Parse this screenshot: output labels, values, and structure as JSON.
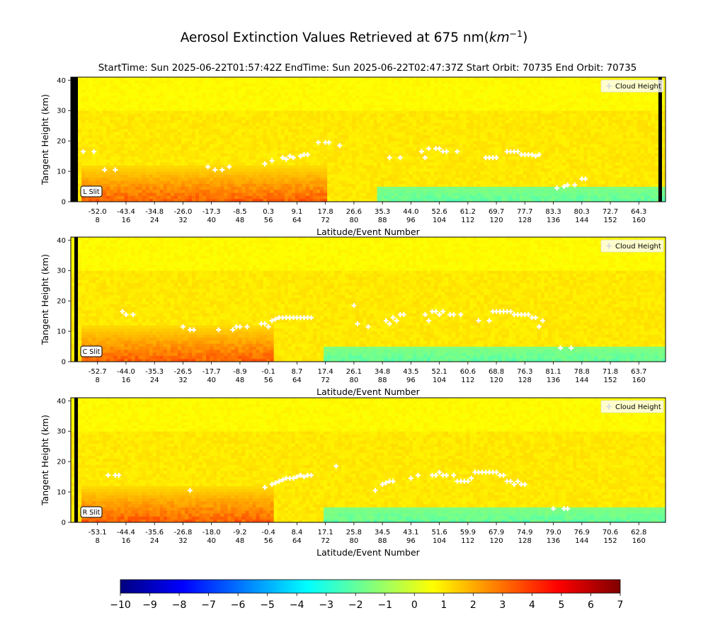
{
  "figure": {
    "title": "Aerosol Extinction Values Retrieved at 675 nm",
    "title_unit_base": "km",
    "title_unit_exp": "−1",
    "subtitle": "StartTime: Sun 2025-06-22T01:57:42Z  EndTime: Sun 2025-06-22T02:47:37Z  Start Orbit: 70735 End Orbit: 70735"
  },
  "chart_data": [
    {
      "type": "heatmap",
      "slit_label": "L Slit",
      "legend_label": "Cloud Height",
      "ylabel": "Tangent Height (km)",
      "xlabel": "Latitude/Event Number",
      "ylim": [
        0,
        41
      ],
      "xlim": [
        1,
        167
      ],
      "yticks": [
        "0",
        "10",
        "20",
        "30",
        "40"
      ],
      "event_ticks": [
        "8",
        "16",
        "24",
        "32",
        "40",
        "48",
        "56",
        "64",
        "72",
        "80",
        "88",
        "96",
        "104",
        "112",
        "120",
        "128",
        "136",
        "144",
        "152",
        "160"
      ],
      "lat_ticks": [
        "-52.0",
        "-43.4",
        "-34.8",
        "-26.0",
        "-17.3",
        "-8.5",
        "0.3",
        "9.1",
        "17.8",
        "26.6",
        "35.3",
        "44.0",
        "52.6",
        "61.2",
        "69.7",
        "77.7",
        "83.3",
        "80.3",
        "72.7",
        "64.3"
      ],
      "aerosol_events": [
        4,
        72
      ],
      "missing_columns": [
        1,
        2,
        166
      ],
      "cloud_heights": [
        [
          4,
          16.5
        ],
        [
          7,
          16.5
        ],
        [
          10,
          10.5
        ],
        [
          13,
          10.5
        ],
        [
          39,
          11.5
        ],
        [
          41,
          10.5
        ],
        [
          43,
          10.5
        ],
        [
          45,
          11.5
        ],
        [
          55,
          12.5
        ],
        [
          57,
          13.5
        ],
        [
          60,
          14.5
        ],
        [
          61,
          14
        ],
        [
          62,
          15
        ],
        [
          63,
          14.5
        ],
        [
          65,
          15
        ],
        [
          66,
          15.5
        ],
        [
          67,
          15.5
        ],
        [
          70,
          19.5
        ],
        [
          72,
          19.5
        ],
        [
          73,
          19.5
        ],
        [
          76,
          18.5
        ],
        [
          90,
          14.5
        ],
        [
          93,
          14.5
        ],
        [
          99,
          16.5
        ],
        [
          100,
          14.5
        ],
        [
          101,
          17.5
        ],
        [
          103,
          17.5
        ],
        [
          104,
          17.5
        ],
        [
          105,
          16.5
        ],
        [
          106,
          16.5
        ],
        [
          109,
          16.5
        ],
        [
          117,
          14.5
        ],
        [
          118,
          14.5
        ],
        [
          119,
          14.5
        ],
        [
          120,
          14.5
        ],
        [
          123,
          16.5
        ],
        [
          124,
          16.5
        ],
        [
          125,
          16.5
        ],
        [
          126,
          16.5
        ],
        [
          127,
          15.5
        ],
        [
          128,
          15.5
        ],
        [
          129,
          15.5
        ],
        [
          130,
          15.5
        ],
        [
          131,
          15
        ],
        [
          132,
          15.5
        ],
        [
          137,
          4.5
        ],
        [
          139,
          5
        ],
        [
          140,
          5.5
        ],
        [
          142,
          5.5
        ],
        [
          144,
          7.5
        ],
        [
          145,
          7.5
        ]
      ]
    },
    {
      "type": "heatmap",
      "slit_label": "C Slit",
      "legend_label": "Cloud Height",
      "ylabel": "Tangent Height (km)",
      "xlabel": "Latitude/Event Number",
      "ylim": [
        0,
        41
      ],
      "xlim": [
        1,
        167
      ],
      "yticks": [
        "0",
        "10",
        "20",
        "30",
        "40"
      ],
      "event_ticks": [
        "8",
        "16",
        "24",
        "32",
        "40",
        "48",
        "56",
        "64",
        "72",
        "80",
        "88",
        "96",
        "104",
        "112",
        "120",
        "128",
        "136",
        "144",
        "152",
        "160"
      ],
      "lat_ticks": [
        "-52.7",
        "-44.0",
        "-35.3",
        "-26.5",
        "-17.7",
        "-8.9",
        "-0.1",
        "8.7",
        "17.4",
        "26.1",
        "34.8",
        "43.5",
        "52.1",
        "60.6",
        "68.8",
        "76.3",
        "81.1",
        "78.8",
        "71.8",
        "63.7"
      ],
      "aerosol_events": [
        4,
        57
      ],
      "missing_columns": [
        2
      ],
      "cloud_heights": [
        [
          15,
          16.5
        ],
        [
          16,
          15.5
        ],
        [
          18,
          15.5
        ],
        [
          32,
          11.5
        ],
        [
          34,
          10.5
        ],
        [
          35,
          10.5
        ],
        [
          42,
          10.5
        ],
        [
          46,
          10.5
        ],
        [
          47,
          11.5
        ],
        [
          48,
          11.5
        ],
        [
          50,
          11.5
        ],
        [
          54,
          12.5
        ],
        [
          55,
          12.5
        ],
        [
          56,
          11.5
        ],
        [
          57,
          13.5
        ],
        [
          58,
          14
        ],
        [
          59,
          14.5
        ],
        [
          60,
          14.5
        ],
        [
          61,
          14.5
        ],
        [
          62,
          14.5
        ],
        [
          63,
          14.5
        ],
        [
          64,
          14.5
        ],
        [
          65,
          14.5
        ],
        [
          66,
          14.5
        ],
        [
          67,
          14.5
        ],
        [
          68,
          14.5
        ],
        [
          80,
          18.5
        ],
        [
          81,
          12.5
        ],
        [
          84,
          11.5
        ],
        [
          89,
          13.5
        ],
        [
          90,
          12.5
        ],
        [
          91,
          14.5
        ],
        [
          92,
          13.5
        ],
        [
          93,
          15.5
        ],
        [
          94,
          15.5
        ],
        [
          100,
          15.5
        ],
        [
          101,
          13.5
        ],
        [
          102,
          16.5
        ],
        [
          103,
          16.5
        ],
        [
          104,
          15.5
        ],
        [
          105,
          16.5
        ],
        [
          107,
          15.5
        ],
        [
          108,
          15.5
        ],
        [
          110,
          15.5
        ],
        [
          115,
          13.5
        ],
        [
          118,
          13.5
        ],
        [
          119,
          16.5
        ],
        [
          120,
          16.5
        ],
        [
          121,
          16.5
        ],
        [
          122,
          16.5
        ],
        [
          123,
          16.5
        ],
        [
          124,
          16.5
        ],
        [
          125,
          15.5
        ],
        [
          126,
          15.5
        ],
        [
          127,
          15.5
        ],
        [
          128,
          15.5
        ],
        [
          129,
          15.5
        ],
        [
          130,
          14.5
        ],
        [
          131,
          14.5
        ],
        [
          132,
          11.5
        ],
        [
          133,
          13.5
        ],
        [
          138,
          4.5
        ],
        [
          141,
          4.5
        ]
      ]
    },
    {
      "type": "heatmap",
      "slit_label": "R Slit",
      "legend_label": "Cloud Height",
      "ylabel": "Tangent Height (km)",
      "xlabel": "Latitude/Event Number",
      "ylim": [
        0,
        41
      ],
      "xlim": [
        1,
        167
      ],
      "yticks": [
        "0",
        "10",
        "20",
        "30",
        "40"
      ],
      "event_ticks": [
        "8",
        "16",
        "24",
        "32",
        "40",
        "48",
        "56",
        "64",
        "72",
        "80",
        "88",
        "96",
        "104",
        "112",
        "120",
        "128",
        "136",
        "144",
        "152",
        "160"
      ],
      "lat_ticks": [
        "-53.1",
        "-44.4",
        "-35.6",
        "-26.8",
        "-18.0",
        "-9.2",
        "-0.4",
        "8.4",
        "17.1",
        "25.8",
        "34.5",
        "43.1",
        "51.6",
        "59.9",
        "67.9",
        "74.9",
        "79.0",
        "76.9",
        "70.6",
        "62.8"
      ],
      "aerosol_events": [
        4,
        57
      ],
      "missing_columns": [
        2
      ],
      "cloud_heights": [
        [
          11,
          15.5
        ],
        [
          13,
          15.5
        ],
        [
          14,
          15.5
        ],
        [
          34,
          10.5
        ],
        [
          55,
          11.5
        ],
        [
          57,
          12.5
        ],
        [
          58,
          13
        ],
        [
          59,
          13.5
        ],
        [
          60,
          14
        ],
        [
          61,
          14.5
        ],
        [
          62,
          14.5
        ],
        [
          63,
          14.5
        ],
        [
          64,
          15
        ],
        [
          65,
          15.5
        ],
        [
          66,
          15
        ],
        [
          67,
          15.5
        ],
        [
          68,
          15.5
        ],
        [
          75,
          18.5
        ],
        [
          86,
          10.5
        ],
        [
          88,
          12.5
        ],
        [
          89,
          13
        ],
        [
          90,
          13.5
        ],
        [
          91,
          13.5
        ],
        [
          96,
          14.5
        ],
        [
          98,
          15.5
        ],
        [
          102,
          15.5
        ],
        [
          103,
          15.5
        ],
        [
          104,
          16.5
        ],
        [
          105,
          15.5
        ],
        [
          106,
          15.5
        ],
        [
          108,
          15.5
        ],
        [
          109,
          13.5
        ],
        [
          110,
          13.5
        ],
        [
          111,
          13.5
        ],
        [
          112,
          13.5
        ],
        [
          113,
          14.5
        ],
        [
          114,
          16.5
        ],
        [
          115,
          16.5
        ],
        [
          116,
          16.5
        ],
        [
          117,
          16.5
        ],
        [
          118,
          16.5
        ],
        [
          119,
          16.5
        ],
        [
          120,
          16.5
        ],
        [
          121,
          15.5
        ],
        [
          122,
          15.5
        ],
        [
          123,
          13.5
        ],
        [
          124,
          13.5
        ],
        [
          125,
          12.5
        ],
        [
          126,
          13.5
        ],
        [
          127,
          12.5
        ],
        [
          128,
          12.5
        ],
        [
          136,
          4.5
        ],
        [
          139,
          4.5
        ],
        [
          140,
          4.5
        ]
      ]
    }
  ],
  "colorbar": {
    "min": -10,
    "max": 7,
    "ticks": [
      "−10",
      "−9",
      "−8",
      "−7",
      "−6",
      "−5",
      "−4",
      "−3",
      "−2",
      "−1",
      "0",
      "1",
      "2",
      "3",
      "4",
      "5",
      "6",
      "7"
    ],
    "colors": [
      "#00007f",
      "#0000ff",
      "#007fff",
      "#00ffff",
      "#7fff7f",
      "#ffff00",
      "#ff7f00",
      "#ff0000",
      "#7f0000"
    ]
  }
}
